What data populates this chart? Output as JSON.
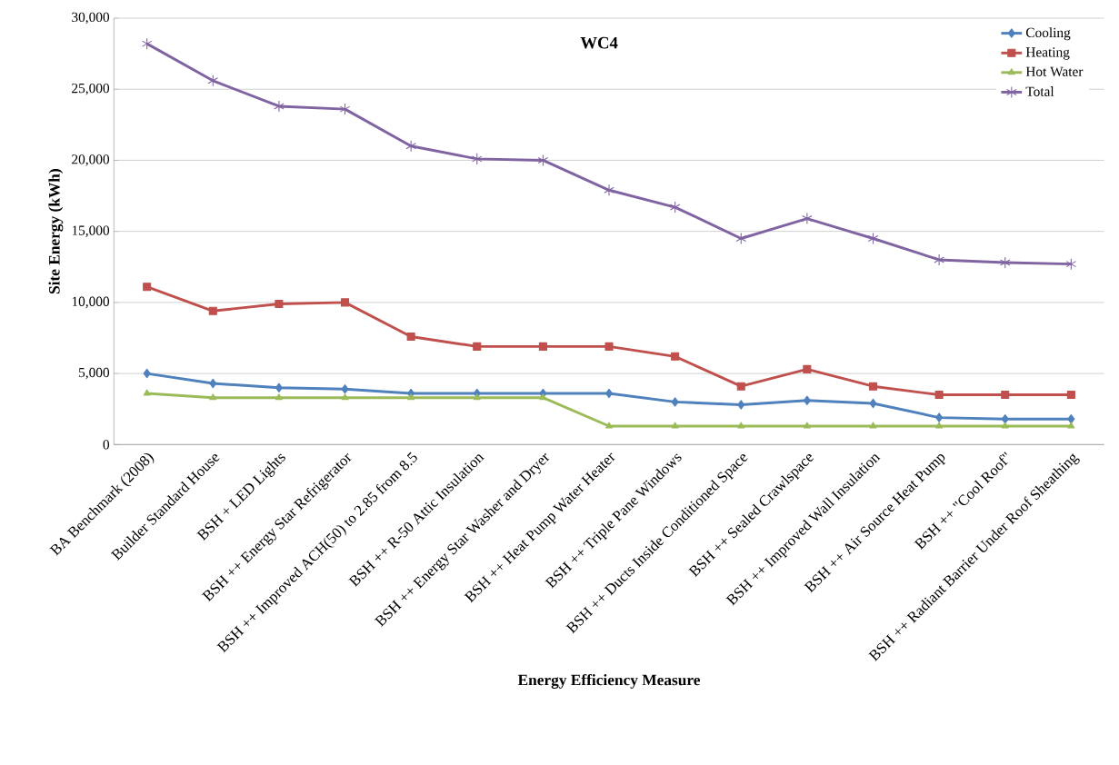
{
  "chart_data": {
    "type": "line",
    "title": "WC4",
    "xlabel": "Energy Efficiency Measure",
    "ylabel": "Site Energy (kWh)",
    "categories": [
      "BA Benchmark (2008)",
      "Builder Standard House",
      "BSH + LED Lights",
      "BSH ++ Energy Star Refrigerator",
      "BSH ++ Improved ACH(50) to 2.85 from 8.5",
      "BSH ++ R-50 Attic Insulation",
      "BSH ++ Energy Star Washer and Dryer",
      "BSH ++ Heat Pump Water Heater",
      "BSH ++ Triple Pane Windows",
      "BSH ++ Ducts Inside Conditioned Space",
      "BSH ++ Sealed Crawlspace",
      "BSH ++ Improved Wall Insulation",
      "BSH ++ Air Source Heat Pump",
      "BSH ++ \"Cool Roof\"",
      "BSH ++ Radiant Barrier Under Roof Sheathing"
    ],
    "series": [
      {
        "name": "Cooling",
        "color": "#4f81bd",
        "marker": "diamond",
        "values": [
          5000,
          4300,
          4000,
          3900,
          3600,
          3600,
          3600,
          3600,
          3000,
          2800,
          3100,
          2900,
          1900,
          1800,
          1800
        ]
      },
      {
        "name": "Heating",
        "color": "#c0504d",
        "marker": "square",
        "values": [
          11100,
          9400,
          9900,
          10000,
          7600,
          6900,
          6900,
          6900,
          6200,
          4100,
          5300,
          4100,
          3500,
          3500,
          3500
        ]
      },
      {
        "name": "Hot Water",
        "color": "#9bbb59",
        "marker": "triangle",
        "values": [
          3600,
          3300,
          3300,
          3300,
          3300,
          3300,
          3300,
          1300,
          1300,
          1300,
          1300,
          1300,
          1300,
          1300,
          1300
        ]
      },
      {
        "name": "Total",
        "color": "#8064a2",
        "marker": "cross",
        "values": [
          28200,
          25600,
          23800,
          23600,
          21000,
          20100,
          20000,
          17900,
          16700,
          14500,
          15900,
          14500,
          13000,
          12800,
          12700
        ]
      }
    ],
    "ylim": [
      0,
      30000
    ],
    "yticks": [
      0,
      {
        "value": 5000,
        "label": "5,000"
      },
      {
        "value": 10000,
        "label": "10,000"
      },
      {
        "value": 15000,
        "label": "15,000"
      },
      {
        "value": 20000,
        "label": "20,000"
      },
      {
        "value": 25000,
        "label": "25,000"
      },
      {
        "value": 30000,
        "label": "30,000"
      }
    ],
    "grid": "y",
    "legend": "top right",
    "line_style": "solid"
  }
}
